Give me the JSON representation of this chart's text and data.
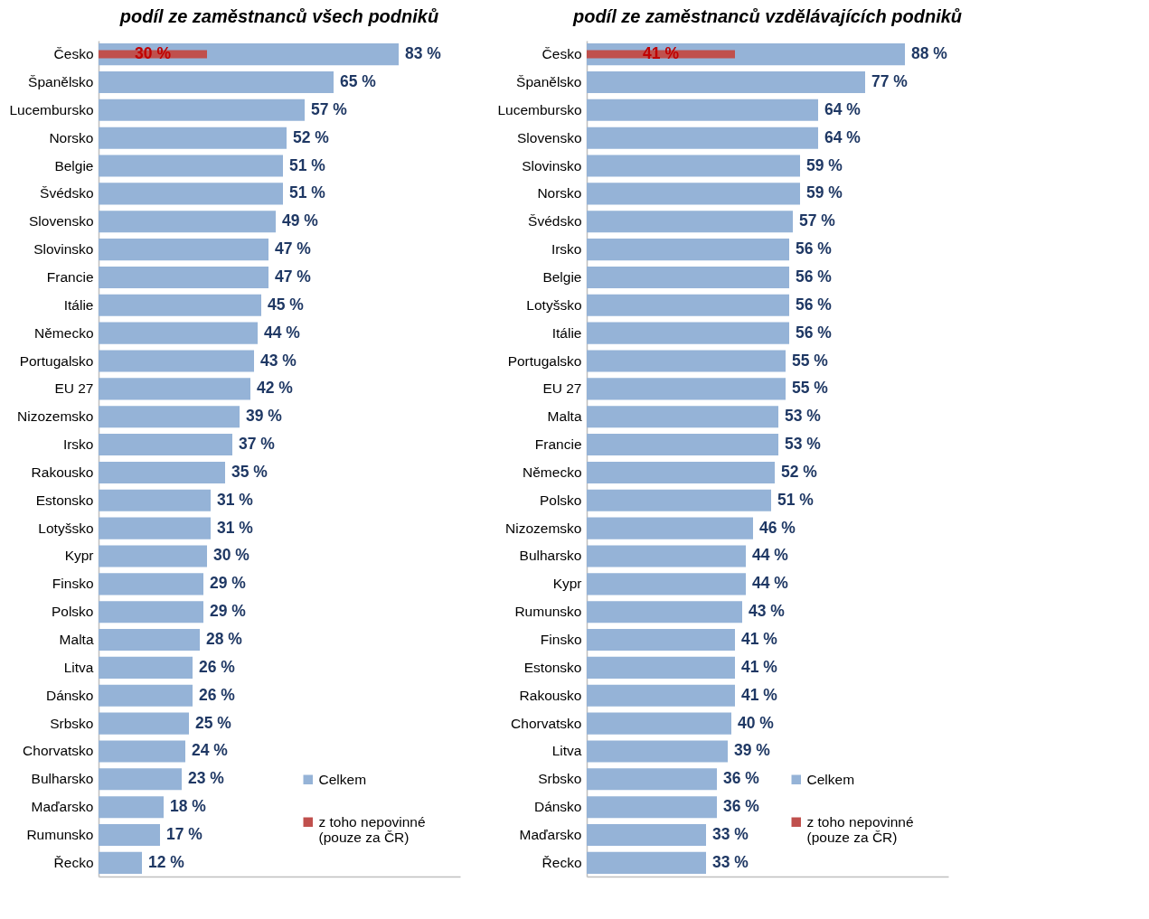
{
  "chart_data": [
    {
      "type": "bar",
      "orientation": "horizontal",
      "title": "podíl ze zaměstnanců všech podniků",
      "xlim": [
        0,
        100
      ],
      "tick_labels": "y",
      "legend": "bottom right",
      "grid": false,
      "categories": [
        "Česko",
        "Španělsko",
        "Lucembursko",
        "Norsko",
        "Belgie",
        "Švédsko",
        "Slovensko",
        "Slovinsko",
        "Francie",
        "Itálie",
        "Německo",
        "Portugalsko",
        "EU 27",
        "Nizozemsko",
        "Irsko",
        "Rakousko",
        "Estonsko",
        "Lotyšsko",
        "Kypr",
        "Finsko",
        "Polsko",
        "Malta",
        "Litva",
        "Dánsko",
        "Srbsko",
        "Chorvatsko",
        "Bulharsko",
        "Maďarsko",
        "Rumunsko",
        "Řecko"
      ],
      "series": [
        {
          "name": "Celkem",
          "color": "#95b3d7",
          "values": [
            83,
            65,
            57,
            52,
            51,
            51,
            49,
            47,
            47,
            45,
            44,
            43,
            42,
            39,
            37,
            35,
            31,
            31,
            30,
            29,
            29,
            28,
            26,
            26,
            25,
            24,
            23,
            18,
            17,
            12
          ],
          "value_labels": [
            "83 %",
            "65 %",
            "57 %",
            "52 %",
            "51 %",
            "51 %",
            "49 %",
            "47 %",
            "47 %",
            "45 %",
            "44 %",
            "43 %",
            "42 %",
            "39 %",
            "37 %",
            "35 %",
            "31 %",
            "31 %",
            "30 %",
            "29 %",
            "29 %",
            "28 %",
            "26 %",
            "26 %",
            "25 %",
            "24 %",
            "23 %",
            "18 %",
            "17 %",
            "12 %"
          ]
        },
        {
          "name": "z toho nepovinné (pouze za ČR)",
          "color": "#c0504d",
          "values": [
            30,
            null,
            null,
            null,
            null,
            null,
            null,
            null,
            null,
            null,
            null,
            null,
            null,
            null,
            null,
            null,
            null,
            null,
            null,
            null,
            null,
            null,
            null,
            null,
            null,
            null,
            null,
            null,
            null,
            null
          ],
          "value_labels": [
            "30 %",
            null,
            null,
            null,
            null,
            null,
            null,
            null,
            null,
            null,
            null,
            null,
            null,
            null,
            null,
            null,
            null,
            null,
            null,
            null,
            null,
            null,
            null,
            null,
            null,
            null,
            null,
            null,
            null,
            null
          ]
        }
      ]
    },
    {
      "type": "bar",
      "orientation": "horizontal",
      "title": "podíl ze zaměstnanců vzdělávajících podniků",
      "xlim": [
        0,
        100
      ],
      "tick_labels": "y",
      "legend": "bottom right",
      "grid": false,
      "categories": [
        "Česko",
        "Španělsko",
        "Lucembursko",
        "Slovensko",
        "Slovinsko",
        "Norsko",
        "Švédsko",
        "Irsko",
        "Belgie",
        "Lotyšsko",
        "Itálie",
        "Portugalsko",
        "EU 27",
        "Malta",
        "Francie",
        "Německo",
        "Polsko",
        "Nizozemsko",
        "Bulharsko",
        "Kypr",
        "Rumunsko",
        "Finsko",
        "Estonsko",
        "Rakousko",
        "Chorvatsko",
        "Litva",
        "Srbsko",
        "Dánsko",
        "Maďarsko",
        "Řecko"
      ],
      "series": [
        {
          "name": "Celkem",
          "color": "#95b3d7",
          "values": [
            88,
            77,
            64,
            64,
            59,
            59,
            57,
            56,
            56,
            56,
            56,
            55,
            55,
            53,
            53,
            52,
            51,
            46,
            44,
            44,
            43,
            41,
            41,
            41,
            40,
            39,
            36,
            36,
            33,
            33
          ],
          "value_labels": [
            "88 %",
            "77 %",
            "64 %",
            "64 %",
            "59 %",
            "59 %",
            "57 %",
            "56 %",
            "56 %",
            "56 %",
            "56 %",
            "55 %",
            "55 %",
            "53 %",
            "53 %",
            "52 %",
            "51 %",
            "46 %",
            "44 %",
            "44 %",
            "43 %",
            "41 %",
            "41 %",
            "41 %",
            "40 %",
            "39 %",
            "36 %",
            "36 %",
            "33 %",
            "33 %"
          ]
        },
        {
          "name": "z toho nepovinné (pouze za ČR)",
          "color": "#c0504d",
          "values": [
            41,
            null,
            null,
            null,
            null,
            null,
            null,
            null,
            null,
            null,
            null,
            null,
            null,
            null,
            null,
            null,
            null,
            null,
            null,
            null,
            null,
            null,
            null,
            null,
            null,
            null,
            null,
            null,
            null,
            null
          ],
          "value_labels": [
            "41 %",
            null,
            null,
            null,
            null,
            null,
            null,
            null,
            null,
            null,
            null,
            null,
            null,
            null,
            null,
            null,
            null,
            null,
            null,
            null,
            null,
            null,
            null,
            null,
            null,
            null,
            null,
            null,
            null,
            null
          ]
        }
      ]
    }
  ]
}
